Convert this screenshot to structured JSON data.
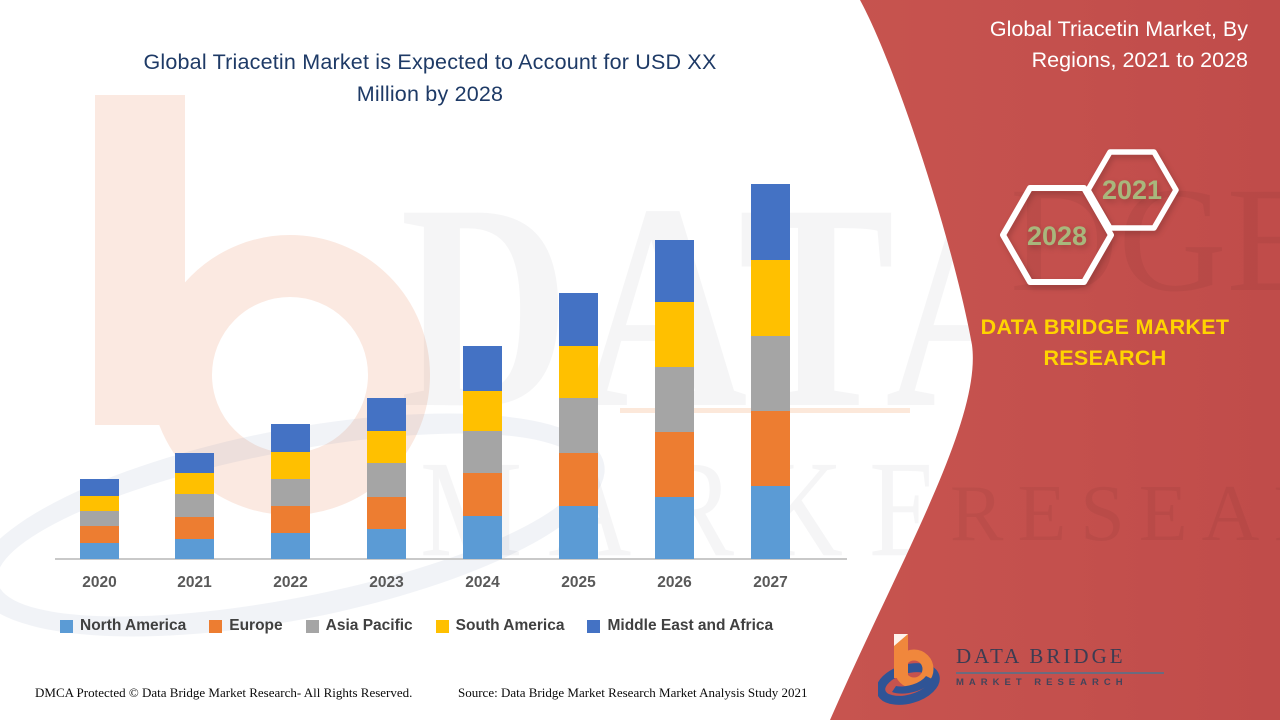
{
  "main_title": {
    "line1": "Global Triacetin Market is Expected to Account for USD XX",
    "line2": "Million by 2028"
  },
  "right_panel": {
    "title_line1": "Global Triacetin Market,  By",
    "title_line2": "Regions, 2021 to 2028",
    "hexagon_small_year": "2021",
    "hexagon_large_year": "2028",
    "brand_line1": "DATA BRIDGE MARKET",
    "brand_line2": "RESEARCH",
    "colors": {
      "panel_red": "#c4514e",
      "brand_yellow": "#ffd400",
      "hexagon_year_text": "#a8b77c",
      "hexagon_border": "#ffffff"
    }
  },
  "chart_data": {
    "type": "bar",
    "stacked": true,
    "title": "Global Triacetin Market is Expected to Account for USD XX Million by 2028",
    "xlabel": "",
    "ylabel": "",
    "y_axis_visible": false,
    "grid": false,
    "legend_position": "bottom",
    "value_units": "USD Million (actual figures masked as 'XX' in source; values below are estimated relative sizes read from bar pixel heights)",
    "categories": [
      "2020",
      "2021",
      "2022",
      "2023",
      "2024",
      "2025",
      "2026",
      "2027"
    ],
    "series": [
      {
        "name": "North America",
        "color": "#5b9bd5",
        "values": [
          16,
          20,
          26,
          30,
          43,
          53,
          62,
          73
        ]
      },
      {
        "name": "Europe",
        "color": "#ed7d31",
        "values": [
          17,
          22,
          27,
          32,
          43,
          53,
          65,
          75
        ]
      },
      {
        "name": "Asia Pacific",
        "color": "#a5a5a5",
        "values": [
          15,
          23,
          27,
          34,
          42,
          55,
          65,
          75
        ]
      },
      {
        "name": "South America",
        "color": "#ffc000",
        "values": [
          15,
          21,
          27,
          32,
          40,
          52,
          65,
          76
        ]
      },
      {
        "name": "Middle East and Africa",
        "color": "#4472c4",
        "values": [
          17,
          20,
          28,
          33,
          45,
          53,
          62,
          76
        ]
      }
    ],
    "bar_totals_estimated": [
      80,
      106,
      135,
      161,
      213,
      266,
      319,
      375
    ]
  },
  "corner_logo": {
    "title": "DATA BRIDGE",
    "subtitle": "MARKET RESEARCH"
  },
  "watermark": {
    "line1": "DATA BRIDGE",
    "line2": "MARKET RESEARCH"
  },
  "footer": {
    "dmca": "DMCA Protected © Data Bridge Market Research- All Rights Reserved.",
    "source": "Source: Data Bridge Market Research Market Analysis Study 2021"
  }
}
